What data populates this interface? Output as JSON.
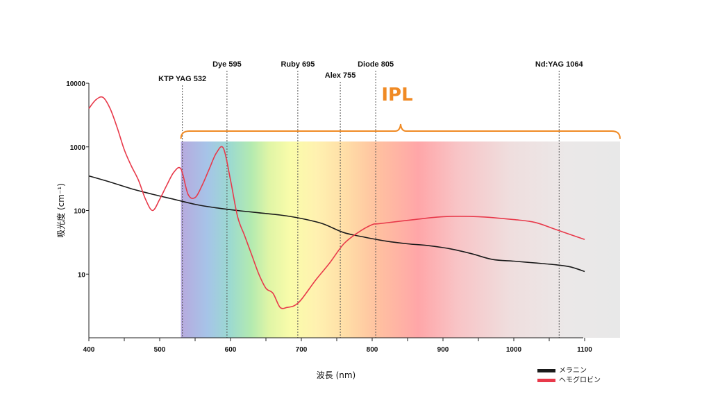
{
  "chart_data": {
    "type": "line",
    "title": "",
    "xlabel": "波長 (nm)",
    "ylabel": "吸光度 (cm⁻¹)",
    "xlim": [
      400,
      1150
    ],
    "ylim": [
      1,
      10000
    ],
    "y_scale": "log",
    "x_ticks": [
      400,
      500,
      600,
      700,
      800,
      900,
      1000,
      1100
    ],
    "y_ticks": [
      {
        "value": 10,
        "label": "10"
      },
      {
        "value": 100,
        "label": "100"
      },
      {
        "value": 1000,
        "label": "1000"
      },
      {
        "value": 10000,
        "label": "10000"
      }
    ],
    "series": [
      {
        "name": "メラニン",
        "color": "#1a1a1a",
        "x": [
          400,
          430,
          460,
          490,
          520,
          550,
          580,
          610,
          640,
          670,
          700,
          730,
          760,
          790,
          820,
          850,
          880,
          910,
          940,
          970,
          1000,
          1030,
          1060,
          1080,
          1100
        ],
        "y": [
          350,
          280,
          220,
          180,
          150,
          125,
          110,
          100,
          92,
          85,
          75,
          62,
          45,
          38,
          33,
          30,
          28,
          25,
          21,
          17,
          16,
          15,
          14,
          13,
          11
        ]
      },
      {
        "name": "ヘモグロビン",
        "color": "#e8394a",
        "x": [
          400,
          410,
          420,
          430,
          440,
          450,
          460,
          470,
          480,
          490,
          500,
          510,
          520,
          530,
          540,
          550,
          560,
          570,
          580,
          590,
          600,
          610,
          620,
          630,
          640,
          650,
          660,
          670,
          680,
          690,
          700,
          720,
          740,
          760,
          780,
          800,
          810,
          850,
          900,
          950,
          1000,
          1030,
          1060,
          1100
        ],
        "y": [
          4000,
          5500,
          6000,
          4000,
          2000,
          900,
          500,
          300,
          150,
          100,
          150,
          250,
          400,
          450,
          180,
          160,
          250,
          450,
          800,
          950,
          300,
          80,
          40,
          20,
          10,
          6,
          5,
          3,
          3,
          3.2,
          4,
          8,
          15,
          30,
          45,
          60,
          62,
          70,
          80,
          80,
          72,
          65,
          50,
          35
        ]
      }
    ],
    "lasers": [
      {
        "label": "KTP YAG 532",
        "x": 532
      },
      {
        "label": "Dye 595",
        "x": 595
      },
      {
        "label": "Ruby 695",
        "x": 695
      },
      {
        "label": "Alex 755",
        "x": 755
      },
      {
        "label": "Diode 805",
        "x": 805
      },
      {
        "label": "Nd:YAG 1064",
        "x": 1064
      }
    ],
    "ipl": {
      "label": "IPL",
      "x_start": 530,
      "x_end": 1150,
      "color": "#f08a24"
    },
    "legend_position": "bottom-right"
  }
}
